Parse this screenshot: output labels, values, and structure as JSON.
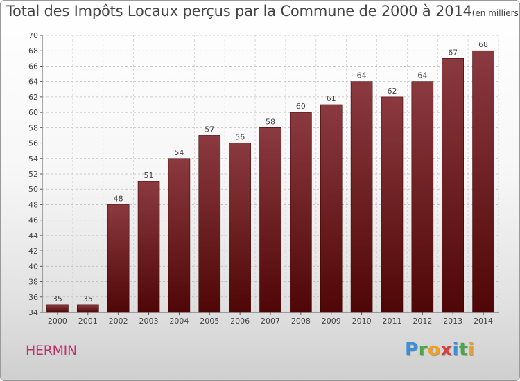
{
  "title": "Total des Impôts Locaux perçus par la Commune de 2000 à 2014",
  "unit_note": "(en milliers d'€)",
  "commune": "HERMIN",
  "logo": {
    "letters": [
      {
        "char": "P",
        "color": "#3a8fd6"
      },
      {
        "char": "r",
        "color": "#4aa84a"
      },
      {
        "char": "o",
        "color": "#f0a020"
      },
      {
        "char": "x",
        "color": "#d84040"
      },
      {
        "char": "i",
        "color": "#3a8fd6"
      },
      {
        "char": "t",
        "color": "#4aa84a"
      },
      {
        "char": "i",
        "color": "#f0a020"
      }
    ]
  },
  "chart_data": {
    "type": "bar",
    "categories": [
      "2000",
      "2001",
      "2002",
      "2003",
      "2004",
      "2005",
      "2006",
      "2007",
      "2008",
      "2009",
      "2010",
      "2011",
      "2012",
      "2013",
      "2014"
    ],
    "values": [
      35,
      35,
      48,
      51,
      54,
      57,
      56,
      58,
      60,
      61,
      64,
      62,
      64,
      67,
      68
    ],
    "ylim": [
      34,
      70
    ],
    "yticks": [
      "34",
      "36",
      "38",
      "40",
      "42",
      "44",
      "46",
      "48",
      "50",
      "52",
      "54",
      "56",
      "58",
      "60",
      "62",
      "64",
      "66",
      "68",
      "70"
    ],
    "grid": true,
    "bar_color_top": "#8b3a3f",
    "bar_color_bottom": "#4f0606"
  }
}
